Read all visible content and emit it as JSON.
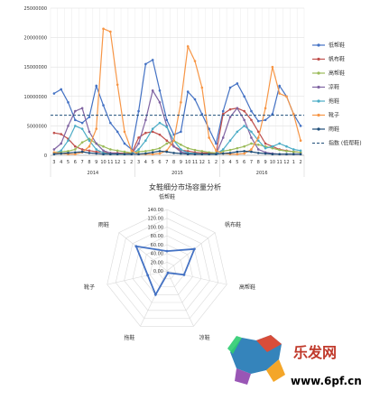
{
  "chart_data": [
    {
      "type": "line",
      "title": "",
      "y_ticks": [
        "0",
        "5000000",
        "10000000",
        "15000000",
        "20000000",
        "25000000"
      ],
      "ylim": [
        0,
        25000000
      ],
      "x_month_labels": [
        "3",
        "4",
        "5",
        "6",
        "7",
        "8",
        "9",
        "10",
        "11",
        "12",
        "1",
        "2",
        "3",
        "4",
        "5",
        "6",
        "7",
        "8",
        "9",
        "10",
        "11",
        "12",
        "1",
        "2",
        "3",
        "4",
        "5",
        "6",
        "7",
        "8",
        "9",
        "10",
        "11",
        "12",
        "1",
        "2"
      ],
      "x_year_labels": [
        "2014",
        "2015",
        "2016"
      ],
      "legend_position": "right",
      "series": [
        {
          "name": "低帮鞋",
          "color": "#4472c4",
          "values": [
            10500000,
            11200000,
            9000000,
            6000000,
            5500000,
            6500000,
            11800000,
            8500000,
            5500000,
            4000000,
            2000000,
            1000000,
            7500000,
            15500000,
            16200000,
            11000000,
            6000000,
            3500000,
            4000000,
            10800000,
            9500000,
            7000000,
            4500000,
            2000000,
            7500000,
            11500000,
            12200000,
            10000000,
            7500000,
            5800000,
            6000000,
            7000000,
            11800000,
            10000000,
            7000000,
            5000000
          ]
        },
        {
          "name": "帆布鞋",
          "color": "#c0504d",
          "values": [
            3800000,
            3600000,
            2800000,
            1500000,
            1000000,
            800000,
            600000,
            500000,
            400000,
            400000,
            300000,
            300000,
            3000000,
            3800000,
            4000000,
            3500000,
            2500000,
            1500000,
            900000,
            700000,
            500000,
            400000,
            400000,
            300000,
            7000000,
            7800000,
            8000000,
            7500000,
            6000000,
            4000000,
            2000000,
            1500000,
            1000000,
            800000,
            600000,
            500000
          ]
        },
        {
          "name": "高帮鞋",
          "color": "#9bbb59",
          "values": [
            500000,
            600000,
            700000,
            1000000,
            2200000,
            2800000,
            2000000,
            1500000,
            1000000,
            800000,
            600000,
            400000,
            600000,
            700000,
            900000,
            1200000,
            2000000,
            2500000,
            1800000,
            1200000,
            900000,
            700000,
            500000,
            400000,
            700000,
            900000,
            1200000,
            1500000,
            2000000,
            1800000,
            1500000,
            1200000,
            900000,
            700000,
            600000,
            500000
          ]
        },
        {
          "name": "凉鞋",
          "color": "#8064a2",
          "values": [
            1000000,
            2000000,
            5000000,
            7500000,
            8000000,
            4000000,
            2000000,
            800000,
            400000,
            300000,
            200000,
            200000,
            2000000,
            6000000,
            11000000,
            9000000,
            5000000,
            1500000,
            600000,
            300000,
            200000,
            200000,
            200000,
            200000,
            3000000,
            6500000,
            8000000,
            6000000,
            3000000,
            1000000,
            500000,
            300000,
            200000,
            200000,
            200000,
            200000
          ]
        },
        {
          "name": "拖鞋",
          "color": "#4bacc6",
          "values": [
            300000,
            800000,
            2500000,
            5000000,
            4500000,
            2500000,
            1000000,
            400000,
            200000,
            200000,
            200000,
            200000,
            1000000,
            2500000,
            4500000,
            5500000,
            4800000,
            2500000,
            1000000,
            400000,
            300000,
            200000,
            200000,
            200000,
            1000000,
            2500000,
            4000000,
            5000000,
            4000000,
            2500000,
            1200000,
            1500000,
            2000000,
            1500000,
            1000000,
            800000
          ]
        },
        {
          "name": "靴子",
          "color": "#f79646",
          "values": [
            500000,
            300000,
            200000,
            200000,
            500000,
            1500000,
            4500000,
            21500000,
            21000000,
            12000000,
            4000000,
            800000,
            200000,
            200000,
            200000,
            300000,
            800000,
            2500000,
            9000000,
            18500000,
            16000000,
            11500000,
            3000000,
            800000,
            300000,
            200000,
            200000,
            300000,
            1000000,
            3000000,
            8000000,
            15000000,
            10500000,
            10000000,
            7000000,
            2500000
          ]
        },
        {
          "name": "雨鞋",
          "color": "#1f4e79",
          "values": [
            200000,
            300000,
            400000,
            500000,
            600000,
            400000,
            300000,
            200000,
            200000,
            200000,
            200000,
            200000,
            200000,
            300000,
            500000,
            700000,
            600000,
            400000,
            300000,
            200000,
            200000,
            200000,
            200000,
            200000,
            300000,
            400000,
            600000,
            700000,
            600000,
            400000,
            300000,
            200000,
            200000,
            200000,
            200000,
            200000
          ]
        },
        {
          "name": "指数 (低帮鞋)",
          "color": "#1f4e79",
          "dashed": true,
          "values": [
            6800000,
            6800000
          ]
        }
      ]
    },
    {
      "type": "radar",
      "title": "女鞋细分市场容量分析",
      "r_ticks": [
        "0.00",
        "20.00",
        "40.00",
        "60.00",
        "80.00",
        "100.00",
        "120.00",
        "140.00"
      ],
      "rlim": [
        0,
        140
      ],
      "categories": [
        "低帮鞋",
        "帆布鞋",
        "高帮鞋",
        "凉鞋",
        "拖鞋",
        "靴子",
        "雨鞋"
      ],
      "values": [
        45,
        80,
        40,
        5,
        60,
        45,
        90
      ],
      "color": "#4472c4"
    }
  ],
  "watermark": {
    "brand": "乐发网",
    "url": "www.6pf.cn"
  }
}
